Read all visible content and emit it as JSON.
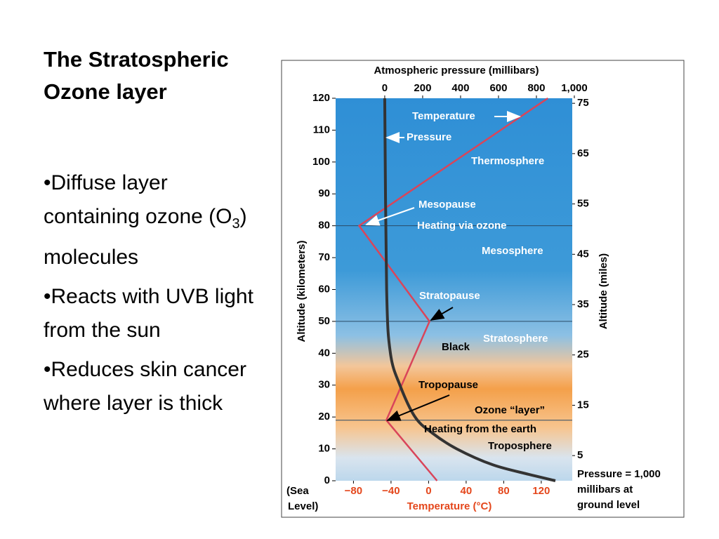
{
  "slide": {
    "title": "The Stratospheric Ozone layer",
    "bullets": [
      [
        "•Diffuse layer containing ozone (O",
        "3",
        ") molecules"
      ],
      [
        "•Reacts with UVB light from the sun"
      ],
      [
        "•Reduces skin cancer where layer is thick"
      ]
    ]
  },
  "chart_data": {
    "type": "line",
    "x_label": "Temperature (°C)",
    "x2_label": "Atmospheric pressure (millibars)",
    "y_label": "Altitude (kilometers)",
    "y2_label": "Altitude (miles)",
    "xlim": [
      -99,
      153
    ],
    "xticks": [
      {
        "value": -80,
        "label": "−80"
      },
      {
        "value": -40,
        "label": "−40"
      },
      0,
      40,
      80,
      120
    ],
    "x2lim": [
      -259,
      989
    ],
    "x2ticks": [
      0,
      200,
      400,
      600,
      800,
      {
        "value": 1000,
        "label": "1,000"
      }
    ],
    "ylim": [
      0,
      120
    ],
    "yticks": [
      0,
      10,
      20,
      30,
      40,
      50,
      60,
      70,
      80,
      90,
      100,
      110,
      120
    ],
    "y2lim": [
      0,
      76
    ],
    "y2ticks": [
      5,
      15,
      25,
      35,
      45,
      55,
      65,
      75
    ],
    "boundaries": [
      19,
      50,
      80
    ],
    "series": [
      {
        "name": "Temperature",
        "color": "#d9455a",
        "x": [
          9,
          -45,
          1,
          -74,
          127
        ],
        "values": [
          0,
          19,
          50,
          80,
          120
        ]
      },
      {
        "name": "Pressure",
        "color": "#333333",
        "axis": "x2",
        "x": [
          900,
          760,
          570,
          380,
          250,
          160,
          80,
          30,
          10,
          0
        ],
        "values": [
          0,
          2,
          5,
          10,
          15,
          20,
          30,
          40,
          60,
          120
        ]
      }
    ],
    "annotations": [
      "Thermosphere",
      "Mesopause",
      "Heating via ozone",
      "Mesosphere",
      "Stratopause",
      "Black",
      "Stratosphere",
      "Tropopause",
      "Ozone “layer”",
      "Heating from the earth",
      "Troposphere"
    ],
    "sea_level": [
      "(Sea",
      "Level)"
    ],
    "note": [
      "Pressure = 1,000",
      "millibars at",
      "ground level"
    ]
  }
}
